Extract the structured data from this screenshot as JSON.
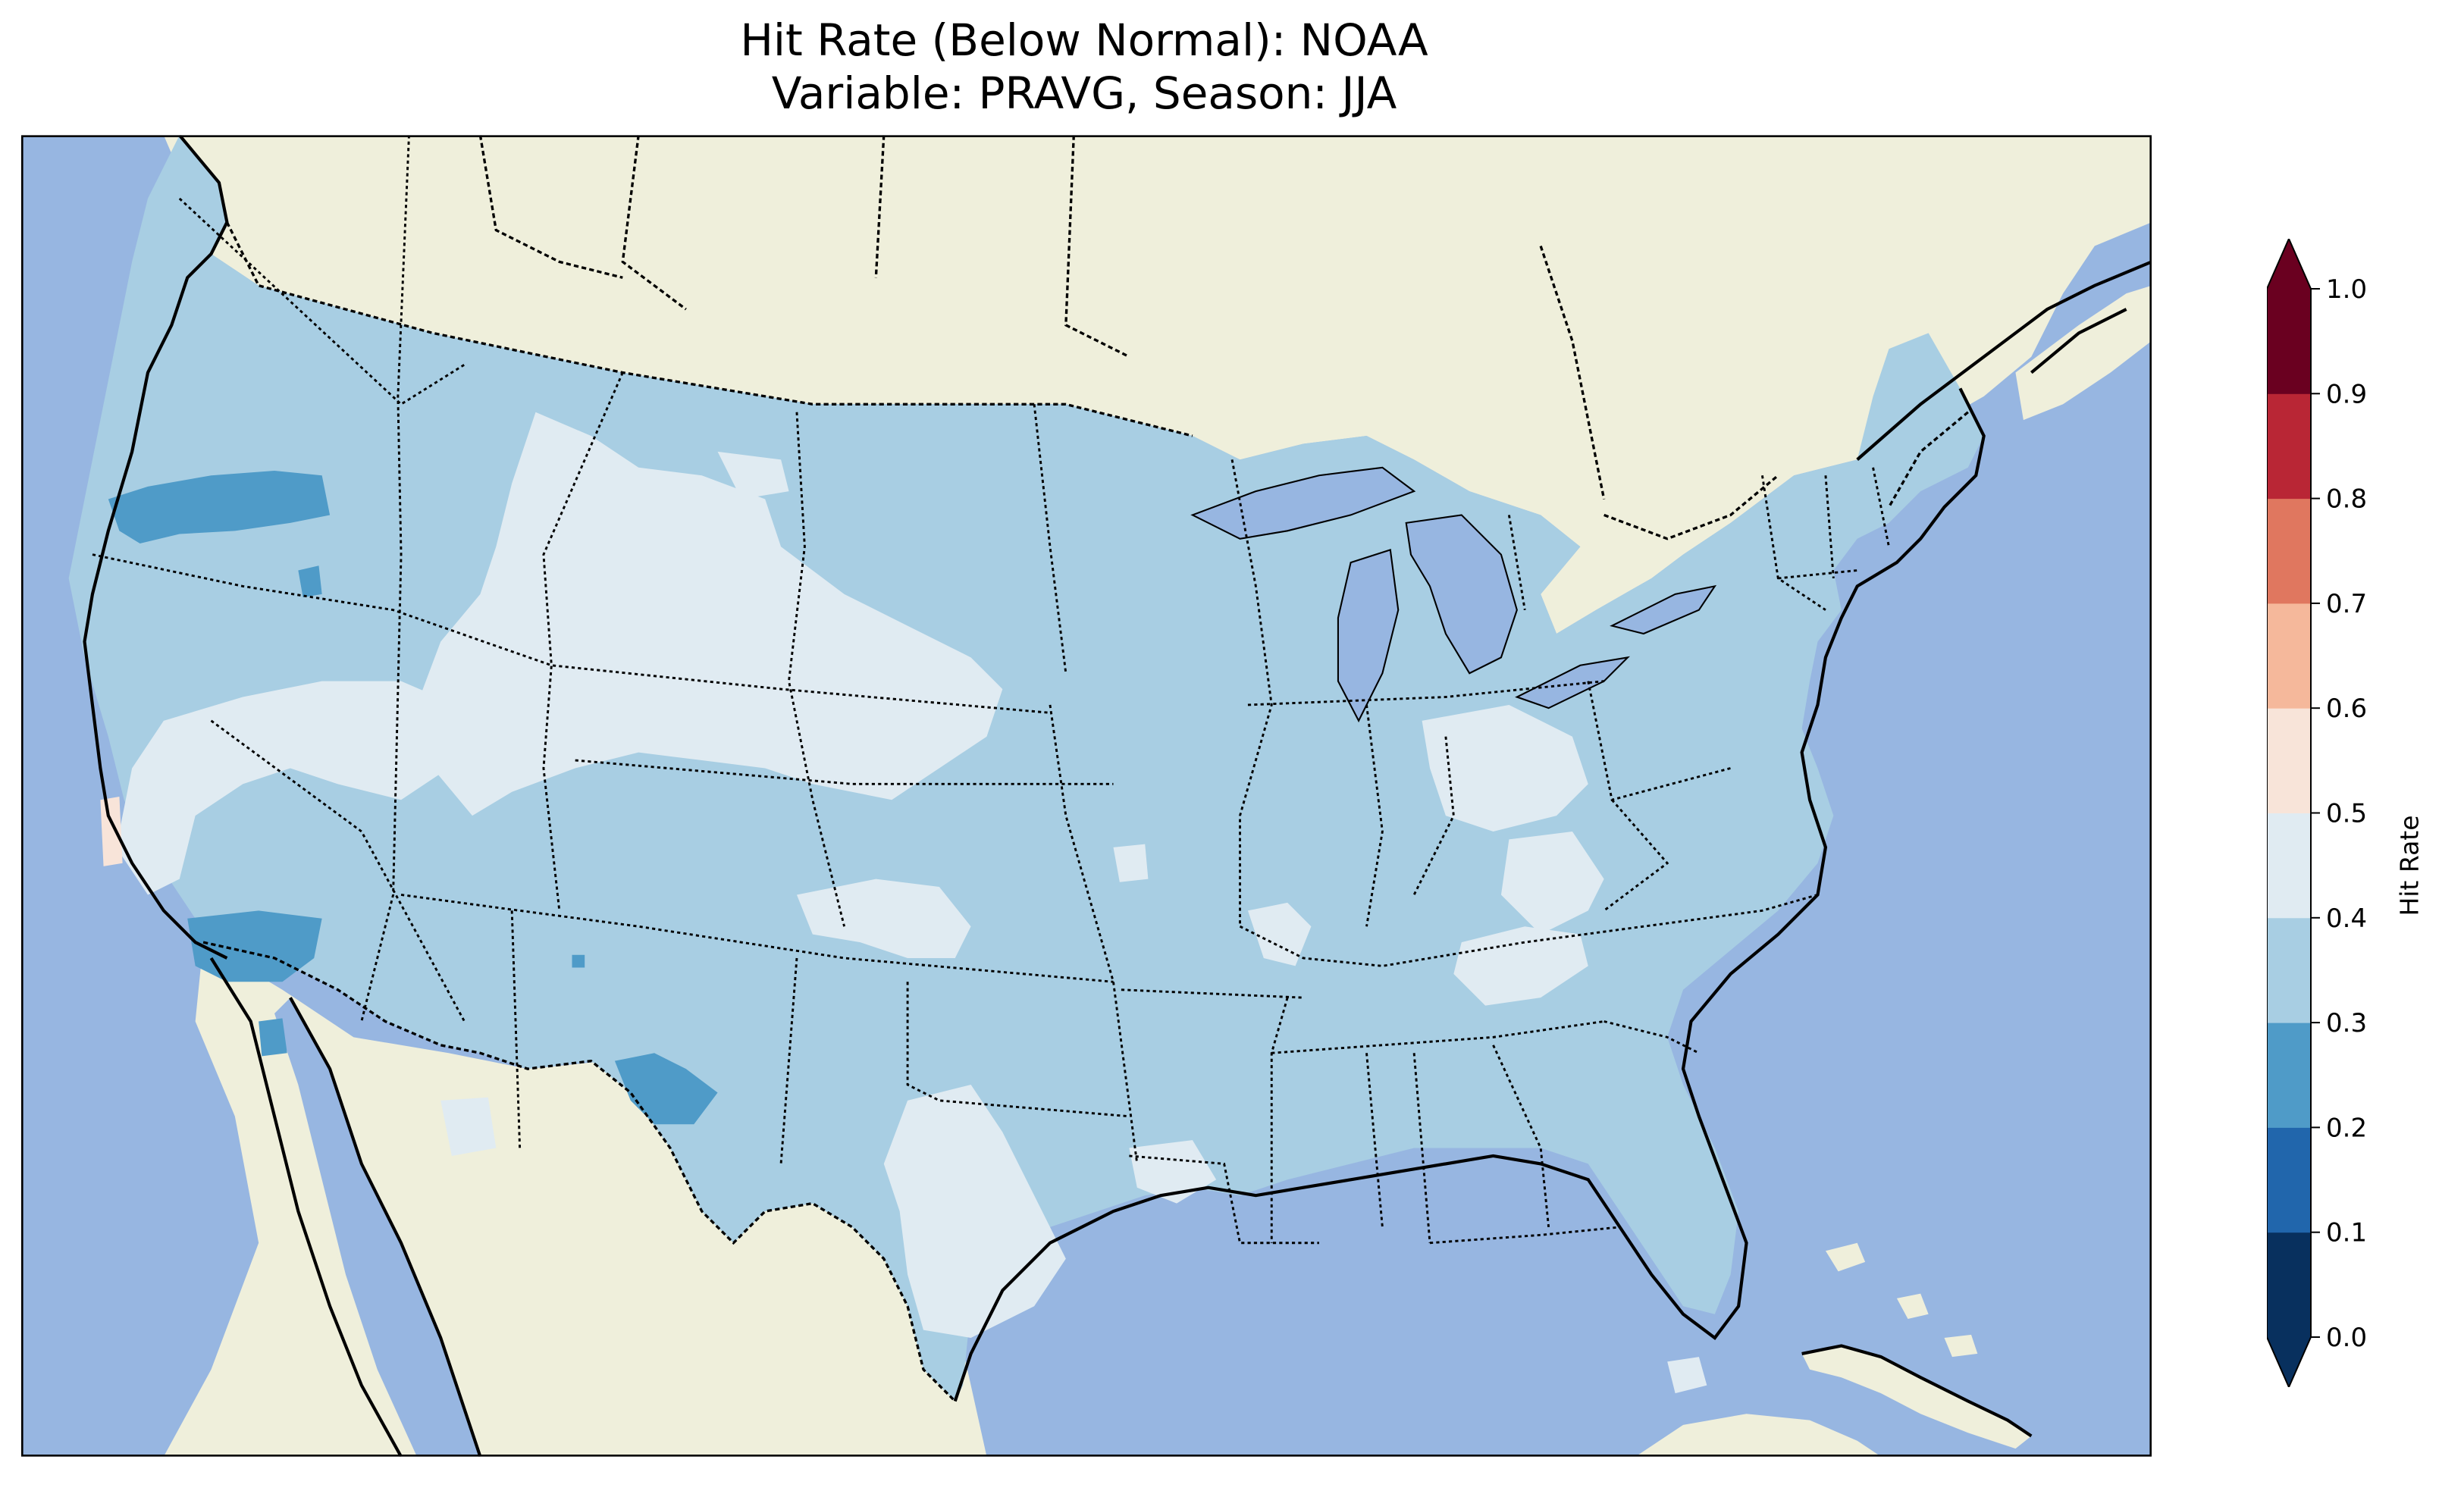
{
  "title": {
    "line1": "Hit Rate (Below Normal): NOAA",
    "line2": "Variable: PRAVG, Season: JJA"
  },
  "colors": {
    "ocean": "#97b6e1",
    "land": "#efefdb",
    "lake": "#97b6e1",
    "border": "#000000"
  },
  "colorbar": {
    "label": "Hit Rate",
    "ticks": [
      "0.0",
      "0.1",
      "0.2",
      "0.3",
      "0.4",
      "0.5",
      "0.6",
      "0.7",
      "0.8",
      "0.9",
      "1.0"
    ],
    "extend": "both",
    "colors": [
      "#053061",
      "#2166ac",
      "#4393c3",
      "#92c5de",
      "#d1e5f0",
      "#f7f7f7",
      "#fddbc7",
      "#f4a582",
      "#d6604d",
      "#b2182b",
      "#67001f"
    ],
    "bins": [
      {
        "range": "0.0-0.1",
        "color": "#08305e"
      },
      {
        "range": "0.1-0.2",
        "color": "#2166ac"
      },
      {
        "range": "0.2-0.3",
        "color": "#4f9bc8"
      },
      {
        "range": "0.3-0.4",
        "color": "#a8cee3"
      },
      {
        "range": "0.4-0.5",
        "color": "#e0ebf2"
      },
      {
        "range": "0.5-0.6",
        "color": "#f8e4d9"
      },
      {
        "range": "0.6-0.7",
        "color": "#f5b89b"
      },
      {
        "range": "0.7-0.8",
        "color": "#e0775f"
      },
      {
        "range": "0.8-0.9",
        "color": "#b92635"
      },
      {
        "range": "0.9-1.0",
        "color": "#6a0020"
      }
    ],
    "under_color": "#08305e",
    "over_color": "#6a0020"
  },
  "map": {
    "region": "CONUS",
    "dominant_value_bin": "0.3-0.4",
    "field_colors": {
      "bin_0_2_0_3": "#4f9bc8",
      "bin_0_3_0_4": "#a8cee3",
      "bin_0_4_0_5": "#e0ebf2",
      "bin_0_5_0_6": "#f8e4d9"
    }
  }
}
